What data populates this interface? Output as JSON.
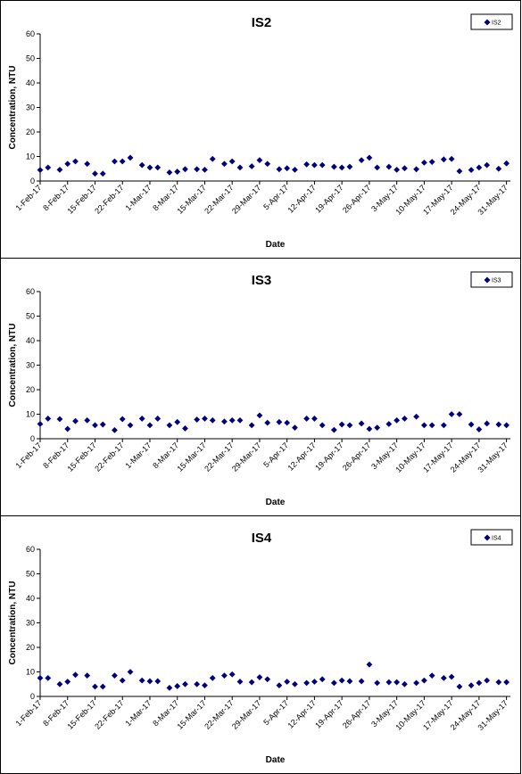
{
  "chart_data": [
    {
      "type": "scatter",
      "title": "IS2",
      "xlabel": "Date",
      "ylabel": "Concentration, NTU",
      "ylim": [
        0,
        60
      ],
      "yticks": [
        0,
        10,
        20,
        30,
        40,
        50,
        60
      ],
      "xlim": [
        "2017-02-01",
        "2017-06-01"
      ],
      "xtick_labels": [
        "1-Feb-17",
        "8-Feb-17",
        "15-Feb-17",
        "22-Feb-17",
        "1-Mar-17",
        "8-Mar-17",
        "15-Mar-17",
        "22-Mar-17",
        "29-Mar-17",
        "5-Apr-17",
        "12-Apr-17",
        "19-Apr-17",
        "26-Apr-17",
        "3-May-17",
        "10-May-17",
        "17-May-17",
        "24-May-17",
        "31-May-17"
      ],
      "grid": false,
      "legend_position": "top-right",
      "marker_color": "#00007f",
      "series": [
        {
          "name": "IS2",
          "x": [
            "2017-02-01",
            "2017-02-03",
            "2017-02-06",
            "2017-02-08",
            "2017-02-10",
            "2017-02-13",
            "2017-02-15",
            "2017-02-17",
            "2017-02-20",
            "2017-02-22",
            "2017-02-24",
            "2017-02-27",
            "2017-03-01",
            "2017-03-03",
            "2017-03-06",
            "2017-03-08",
            "2017-03-10",
            "2017-03-13",
            "2017-03-15",
            "2017-03-17",
            "2017-03-20",
            "2017-03-22",
            "2017-03-24",
            "2017-03-27",
            "2017-03-29",
            "2017-03-31",
            "2017-04-03",
            "2017-04-05",
            "2017-04-07",
            "2017-04-10",
            "2017-04-12",
            "2017-04-14",
            "2017-04-17",
            "2017-04-19",
            "2017-04-21",
            "2017-04-24",
            "2017-04-26",
            "2017-04-28",
            "2017-05-01",
            "2017-05-03",
            "2017-05-05",
            "2017-05-08",
            "2017-05-10",
            "2017-05-12",
            "2017-05-15",
            "2017-05-17",
            "2017-05-19",
            "2017-05-22",
            "2017-05-24",
            "2017-05-26",
            "2017-05-29",
            "2017-05-31"
          ],
          "y": [
            4.5,
            5.5,
            4.6,
            7.0,
            8.0,
            7.0,
            3.0,
            3.0,
            8.0,
            8.0,
            9.5,
            6.5,
            5.5,
            5.5,
            3.5,
            3.8,
            4.8,
            4.8,
            4.6,
            9.0,
            7.0,
            8.0,
            5.5,
            6.0,
            8.5,
            7.0,
            4.8,
            5.2,
            4.6,
            6.8,
            6.5,
            6.5,
            5.8,
            5.5,
            5.8,
            8.5,
            9.5,
            5.5,
            5.8,
            4.6,
            5.2,
            4.8,
            7.5,
            7.8,
            8.8,
            9.0,
            4.0,
            4.5,
            5.5,
            6.5,
            5.0,
            7.2
          ]
        }
      ]
    },
    {
      "type": "scatter",
      "title": "IS3",
      "xlabel": "Date",
      "ylabel": "Concentration, NTU",
      "ylim": [
        0,
        60
      ],
      "yticks": [
        0,
        10,
        20,
        30,
        40,
        50,
        60
      ],
      "xlim": [
        "2017-02-01",
        "2017-06-01"
      ],
      "xtick_labels": [
        "1-Feb-17",
        "8-Feb-17",
        "15-Feb-17",
        "22-Feb-17",
        "1-Mar-17",
        "8-Mar-17",
        "15-Mar-17",
        "22-Mar-17",
        "29-Mar-17",
        "5-Apr-17",
        "12-Apr-17",
        "19-Apr-17",
        "26-Apr-17",
        "3-May-17",
        "10-May-17",
        "17-May-17",
        "24-May-17",
        "31-May-17"
      ],
      "grid": false,
      "legend_position": "top-right",
      "marker_color": "#00007f",
      "series": [
        {
          "name": "IS3",
          "x": [
            "2017-02-01",
            "2017-02-03",
            "2017-02-06",
            "2017-02-08",
            "2017-02-10",
            "2017-02-13",
            "2017-02-15",
            "2017-02-17",
            "2017-02-20",
            "2017-02-22",
            "2017-02-24",
            "2017-02-27",
            "2017-03-01",
            "2017-03-03",
            "2017-03-06",
            "2017-03-08",
            "2017-03-10",
            "2017-03-13",
            "2017-03-15",
            "2017-03-17",
            "2017-03-20",
            "2017-03-22",
            "2017-03-24",
            "2017-03-27",
            "2017-03-29",
            "2017-03-31",
            "2017-04-03",
            "2017-04-05",
            "2017-04-07",
            "2017-04-10",
            "2017-04-12",
            "2017-04-14",
            "2017-04-17",
            "2017-04-19",
            "2017-04-21",
            "2017-04-24",
            "2017-04-26",
            "2017-04-28",
            "2017-05-01",
            "2017-05-03",
            "2017-05-05",
            "2017-05-08",
            "2017-05-10",
            "2017-05-12",
            "2017-05-15",
            "2017-05-17",
            "2017-05-19",
            "2017-05-22",
            "2017-05-24",
            "2017-05-26",
            "2017-05-29",
            "2017-05-31"
          ],
          "y": [
            6.0,
            8.2,
            8.0,
            4.0,
            7.2,
            7.5,
            5.5,
            5.8,
            3.5,
            8.0,
            5.5,
            8.2,
            5.5,
            8.2,
            5.5,
            6.8,
            4.2,
            7.8,
            8.2,
            7.5,
            7.0,
            7.5,
            7.5,
            5.5,
            9.5,
            6.5,
            6.8,
            6.5,
            4.5,
            8.2,
            8.2,
            5.5,
            3.6,
            5.8,
            5.5,
            6.2,
            4.0,
            4.5,
            6.0,
            7.5,
            8.2,
            9.0,
            5.5,
            5.5,
            5.5,
            10.0,
            10.0,
            5.8,
            3.8,
            6.2,
            5.8,
            5.5
          ]
        }
      ]
    },
    {
      "type": "scatter",
      "title": "IS4",
      "xlabel": "Date",
      "ylabel": "Concentration, NTU",
      "ylim": [
        0,
        60
      ],
      "yticks": [
        0,
        10,
        20,
        30,
        40,
        50,
        60
      ],
      "xlim": [
        "2017-02-01",
        "2017-06-01"
      ],
      "xtick_labels": [
        "1-Feb-17",
        "8-Feb-17",
        "15-Feb-17",
        "22-Feb-17",
        "1-Mar-17",
        "8-Mar-17",
        "15-Mar-17",
        "22-Mar-17",
        "29-Mar-17",
        "5-Apr-17",
        "12-Apr-17",
        "19-Apr-17",
        "26-Apr-17",
        "3-May-17",
        "10-May-17",
        "17-May-17",
        "24-May-17",
        "31-May-17"
      ],
      "grid": false,
      "legend_position": "top-right",
      "marker_color": "#00007f",
      "series": [
        {
          "name": "IS4",
          "x": [
            "2017-02-01",
            "2017-02-03",
            "2017-02-06",
            "2017-02-08",
            "2017-02-10",
            "2017-02-13",
            "2017-02-15",
            "2017-02-17",
            "2017-02-20",
            "2017-02-22",
            "2017-02-24",
            "2017-02-27",
            "2017-03-01",
            "2017-03-03",
            "2017-03-06",
            "2017-03-08",
            "2017-03-10",
            "2017-03-13",
            "2017-03-15",
            "2017-03-17",
            "2017-03-20",
            "2017-03-22",
            "2017-03-24",
            "2017-03-27",
            "2017-03-29",
            "2017-03-31",
            "2017-04-03",
            "2017-04-05",
            "2017-04-07",
            "2017-04-10",
            "2017-04-12",
            "2017-04-14",
            "2017-04-17",
            "2017-04-19",
            "2017-04-21",
            "2017-04-24",
            "2017-04-26",
            "2017-04-28",
            "2017-05-01",
            "2017-05-03",
            "2017-05-05",
            "2017-05-08",
            "2017-05-10",
            "2017-05-12",
            "2017-05-15",
            "2017-05-17",
            "2017-05-19",
            "2017-05-22",
            "2017-05-24",
            "2017-05-26",
            "2017-05-29",
            "2017-05-31"
          ],
          "y": [
            7.5,
            7.5,
            5.0,
            6.0,
            8.8,
            8.5,
            4.0,
            4.0,
            8.5,
            6.5,
            10.0,
            6.5,
            6.2,
            6.2,
            3.5,
            4.2,
            5.0,
            5.0,
            4.5,
            7.5,
            8.5,
            9.0,
            6.0,
            5.8,
            7.8,
            7.0,
            4.5,
            6.0,
            5.0,
            5.5,
            6.0,
            7.0,
            5.5,
            6.5,
            6.2,
            6.2,
            13.0,
            5.5,
            5.8,
            5.8,
            5.0,
            5.5,
            6.5,
            8.5,
            7.5,
            8.0,
            4.0,
            4.5,
            5.5,
            6.5,
            5.8,
            5.8
          ]
        }
      ]
    }
  ]
}
